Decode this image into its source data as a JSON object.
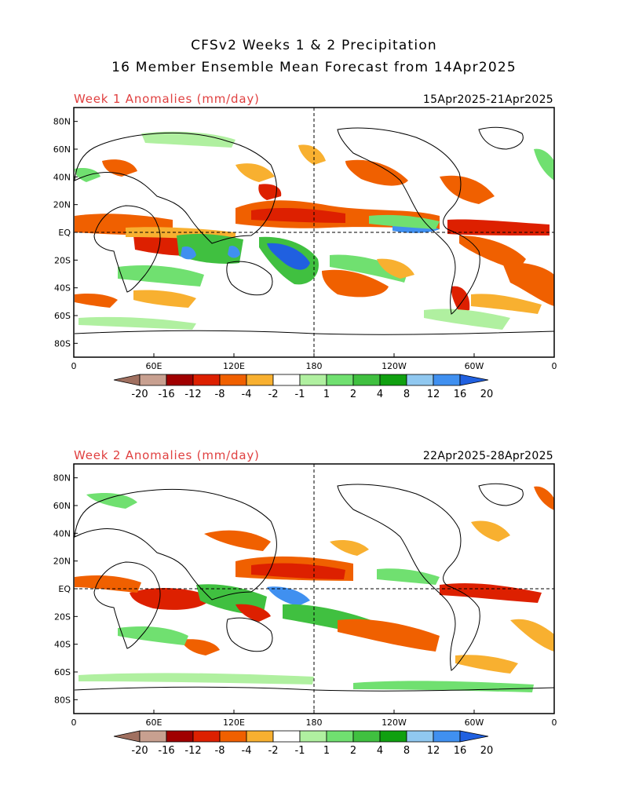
{
  "header": {
    "title_line1": "CFSv2 Weeks 1 & 2 Precipitation",
    "title_line2": "16 Member Ensemble Mean Forecast from 14Apr2025"
  },
  "panels": [
    {
      "label": "Week 1 Anomalies (mm/day)",
      "dates": "15Apr2025-21Apr2025"
    },
    {
      "label": "Week 2 Anomalies (mm/day)",
      "dates": "22Apr2025-28Apr2025"
    }
  ],
  "axes": {
    "lat_labels": [
      "80N",
      "60N",
      "40N",
      "20N",
      "EQ",
      "20S",
      "40S",
      "60S",
      "80S"
    ],
    "lat_values": [
      80,
      60,
      40,
      20,
      0,
      -20,
      -40,
      -60,
      -80
    ],
    "lon_labels": [
      "0",
      "60E",
      "120E",
      "180",
      "120W",
      "60W",
      "0"
    ],
    "lon_values": [
      0,
      60,
      120,
      180,
      240,
      300,
      360
    ]
  },
  "colorbar": {
    "labels": [
      "-20",
      "-16",
      "-12",
      "-8",
      "-4",
      "-2",
      "-1",
      "1",
      "2",
      "4",
      "8",
      "12",
      "16",
      "20"
    ],
    "colors": [
      "#a07060",
      "#c8a090",
      "#a00000",
      "#dd2000",
      "#f06000",
      "#f8b030",
      "#ffffff",
      "#b0f0a0",
      "#70e070",
      "#40c040",
      "#10a010",
      "#90c8f0",
      "#4090f0",
      "#2060e0"
    ]
  }
}
